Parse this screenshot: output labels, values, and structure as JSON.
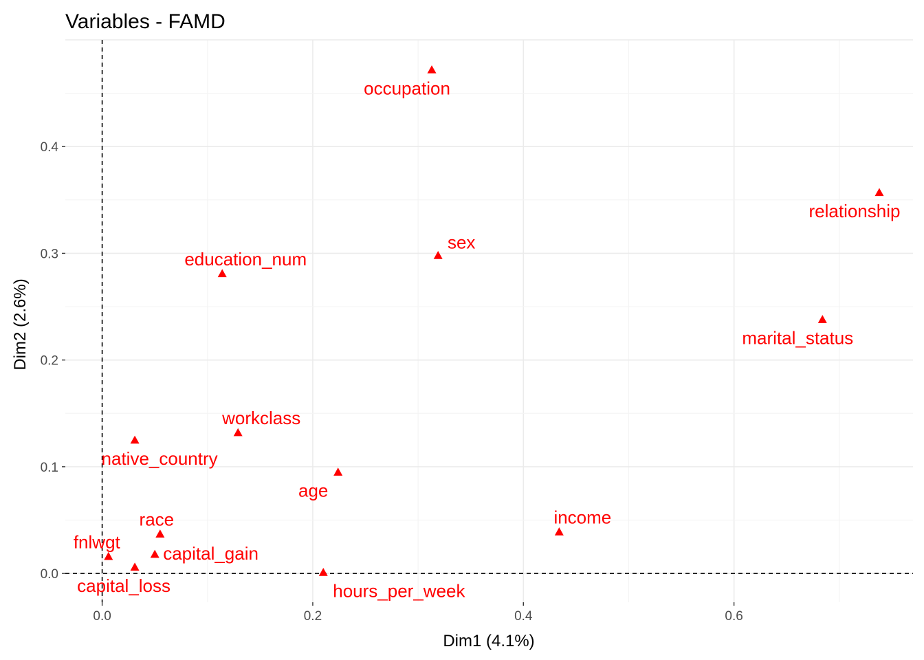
{
  "chart_data": {
    "type": "scatter",
    "title": "Variables - FAMD",
    "xlabel": "Dim1 (4.1%)",
    "ylabel": "Dim2 (2.6%)",
    "xlim": [
      -0.035,
      0.77
    ],
    "ylim": [
      -0.027,
      0.5
    ],
    "x_ticks": [
      "0.0",
      "0.2",
      "0.4",
      "0.6"
    ],
    "y_ticks": [
      "0.0",
      "0.1",
      "0.2",
      "0.3",
      "0.4"
    ],
    "grid": true,
    "reference_lines": {
      "x": 0,
      "y": 0
    },
    "marker": "triangle",
    "color": "#ff0000",
    "points": [
      {
        "label": "occupation",
        "x": 0.313,
        "y": 0.472
      },
      {
        "label": "relationship",
        "x": 0.738,
        "y": 0.357
      },
      {
        "label": "sex",
        "x": 0.319,
        "y": 0.298
      },
      {
        "label": "education_num",
        "x": 0.114,
        "y": 0.281
      },
      {
        "label": "marital_status",
        "x": 0.684,
        "y": 0.238
      },
      {
        "label": "workclass",
        "x": 0.129,
        "y": 0.132
      },
      {
        "label": "native_country",
        "x": 0.031,
        "y": 0.125
      },
      {
        "label": "age",
        "x": 0.224,
        "y": 0.095
      },
      {
        "label": "income",
        "x": 0.434,
        "y": 0.039
      },
      {
        "label": "race",
        "x": 0.055,
        "y": 0.037
      },
      {
        "label": "fnlwgt",
        "x": 0.006,
        "y": 0.016
      },
      {
        "label": "capital_gain",
        "x": 0.05,
        "y": 0.018
      },
      {
        "label": "capital_loss",
        "x": 0.031,
        "y": 0.006
      },
      {
        "label": "hours_per_week",
        "x": 0.21,
        "y": 0.001
      }
    ]
  }
}
